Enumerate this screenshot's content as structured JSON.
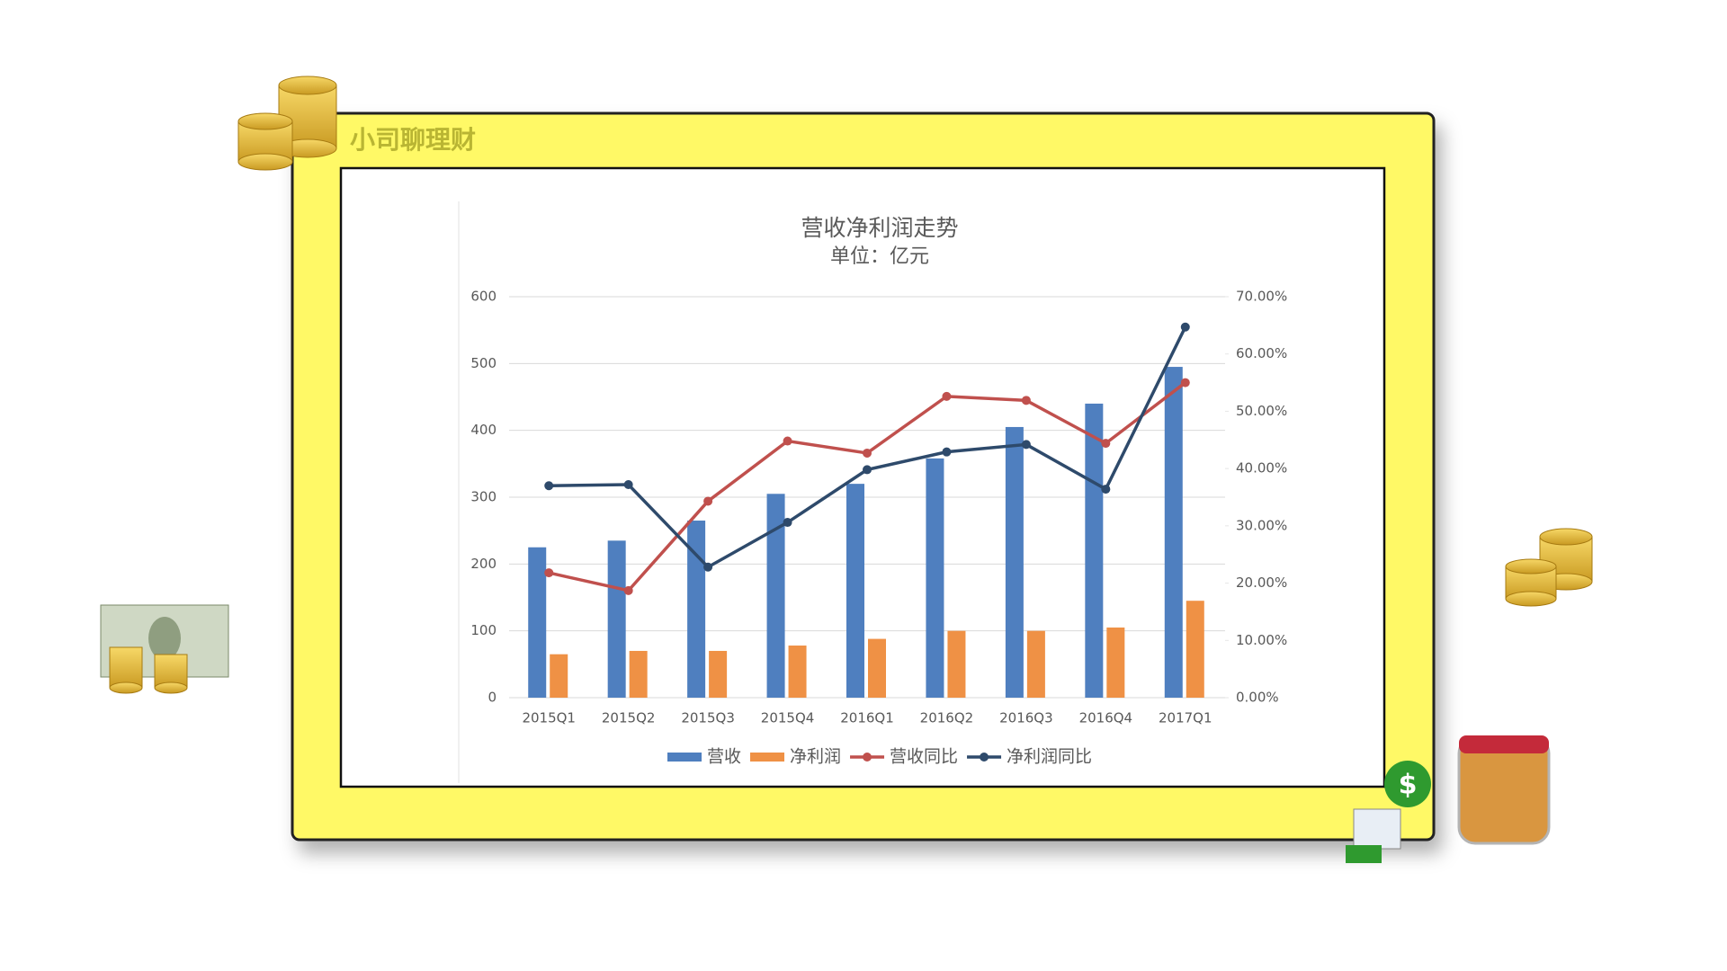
{
  "brand": "小司聊理财",
  "chart_data": {
    "type": "bar",
    "title": "营收净利润走势",
    "subtitle": "单位：亿元",
    "categories": [
      "2015Q1",
      "2015Q2",
      "2015Q3",
      "2015Q4",
      "2016Q1",
      "2016Q2",
      "2016Q3",
      "2016Q4",
      "2017Q1"
    ],
    "series": [
      {
        "name": "营收",
        "type": "bar",
        "color": "#4f7fbf",
        "values": [
          225,
          235,
          265,
          305,
          320,
          358,
          405,
          440,
          495
        ]
      },
      {
        "name": "净利润",
        "type": "bar",
        "color": "#ef9145",
        "values": [
          65,
          70,
          70,
          78,
          88,
          100,
          100,
          105,
          145
        ]
      },
      {
        "name": "营收同比",
        "type": "line",
        "axis": "y2",
        "color": "#c0504d",
        "values": [
          21.8,
          18.7,
          34.3,
          44.8,
          42.7,
          52.6,
          51.9,
          44.4,
          55
        ]
      },
      {
        "name": "净利润同比",
        "type": "line",
        "axis": "y2",
        "color": "#2e4a6b",
        "values": [
          37,
          37.2,
          22.8,
          30.6,
          39.8,
          42.9,
          44.2,
          36.4,
          64.7
        ]
      }
    ],
    "ylim": [
      0,
      600
    ],
    "yticks": [
      0,
      100,
      200,
      300,
      400,
      500,
      600
    ],
    "y2lim": [
      0,
      70
    ],
    "y2ticks": [
      {
        "value": 0,
        "label": "0.00%"
      },
      {
        "value": 10,
        "label": "10.00%"
      },
      {
        "value": 20,
        "label": "20.00%"
      },
      {
        "value": 30,
        "label": "30.00%"
      },
      {
        "value": 40,
        "label": "40.00%"
      },
      {
        "value": 50,
        "label": "50.00%"
      },
      {
        "value": 60,
        "label": "60.00%"
      },
      {
        "value": 70,
        "label": "70.00%"
      }
    ],
    "grid": true,
    "legend": "bottom"
  }
}
